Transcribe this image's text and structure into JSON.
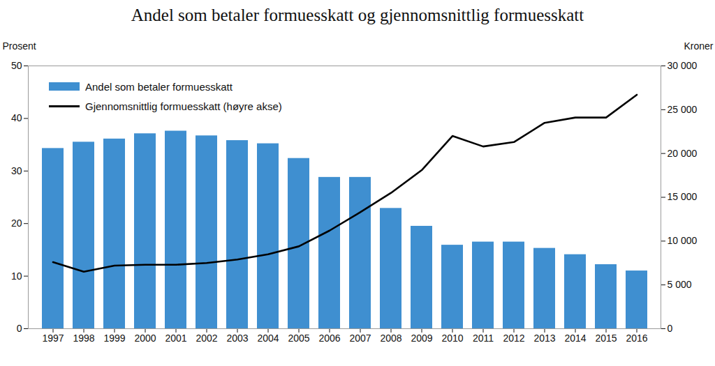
{
  "chart_data": {
    "type": "bar",
    "title": "Andel som betaler formuesskatt og gjennomsnittlig formuesskatt",
    "ylabel": "Prosent",
    "y2label": "Kroner",
    "categories": [
      "1997",
      "1998",
      "1999",
      "2000",
      "2001",
      "2002",
      "2003",
      "2004",
      "2005",
      "2006",
      "2007",
      "2008",
      "2009",
      "2010",
      "2011",
      "2012",
      "2013",
      "2014",
      "2015",
      "2016"
    ],
    "series": [
      {
        "name": "Andel som betaler formuesskatt",
        "type": "bar",
        "color": "#3f8fd0",
        "values": [
          34.3,
          35.5,
          36.1,
          37.1,
          37.6,
          36.7,
          35.8,
          35.2,
          32.4,
          28.8,
          28.8,
          22.9,
          19.5,
          15.9,
          16.5,
          16.5,
          15.3,
          14.1,
          12.2,
          11.0
        ]
      },
      {
        "name": "Gjennomsnittlig formuesskatt (høyre akse)",
        "type": "line",
        "axis": "y2",
        "color": "#000000",
        "values": [
          7600,
          6500,
          7200,
          7300,
          7300,
          7500,
          7900,
          8500,
          9400,
          11200,
          13300,
          15500,
          18100,
          22000,
          20800,
          21300,
          23500,
          24100,
          24100,
          26700
        ]
      }
    ],
    "ylim": [
      0,
      50
    ],
    "yticks": [
      0,
      10,
      20,
      30,
      40,
      50
    ],
    "y2lim": [
      0,
      30000
    ],
    "y2ticks": [
      0,
      {
        "value": 5000,
        "label": "5 000"
      },
      {
        "value": 10000,
        "label": "10 000"
      },
      {
        "value": 15000,
        "label": "15 000"
      },
      {
        "value": 20000,
        "label": "20 000"
      },
      {
        "value": 25000,
        "label": "25 000"
      },
      {
        "value": 30000,
        "label": "30 000"
      }
    ],
    "legend": "top-left",
    "grid": false
  }
}
